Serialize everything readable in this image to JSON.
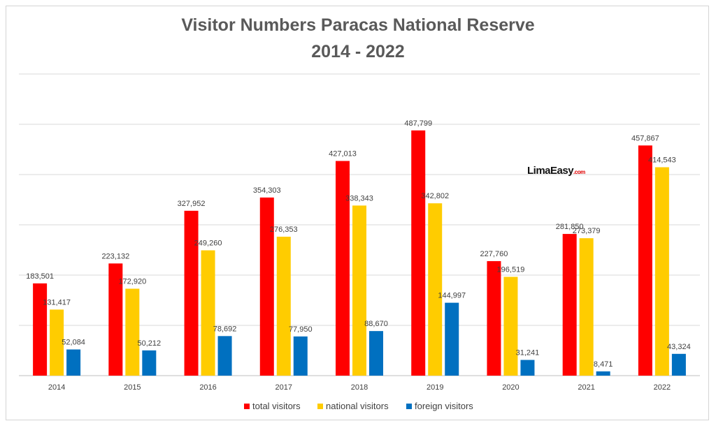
{
  "chart_data": {
    "type": "bar",
    "title": "Visitor Numbers Paracas National Reserve",
    "subtitle": "2014 - 2022",
    "categories": [
      "2014",
      "2015",
      "2016",
      "2017",
      "2018",
      "2019",
      "2020",
      "2021",
      "2022"
    ],
    "series": [
      {
        "name": "total visitors",
        "color": "#ff0000",
        "values": [
          183501,
          223132,
          327952,
          354303,
          427013,
          487799,
          227760,
          281850,
          457867
        ],
        "labels": [
          "183,501",
          "223,132",
          "327,952",
          "354,303",
          "427,013",
          "487,799",
          "227,760",
          "281,850",
          "457,867"
        ]
      },
      {
        "name": "national visitors",
        "color": "#ffcc00",
        "values": [
          131417,
          172920,
          249260,
          276353,
          338343,
          342802,
          196519,
          273379,
          414543
        ],
        "labels": [
          "131,417",
          "172,920",
          "249,260",
          "276,353",
          "338,343",
          "342,802",
          "196,519",
          "273,379",
          "414,543"
        ]
      },
      {
        "name": "foreign visitors",
        "color": "#0070c0",
        "values": [
          52084,
          50212,
          78692,
          77950,
          88670,
          144997,
          31241,
          8471,
          43324
        ],
        "labels": [
          "52,084",
          "50,212",
          "78,692",
          "77,950",
          "88,670",
          "144,997",
          "31,241",
          "8,471",
          "43,324"
        ]
      }
    ],
    "ylim": [
      0,
      600000
    ],
    "y_gridlines": [
      100000,
      200000,
      300000,
      400000,
      500000,
      600000
    ],
    "y_tick_labels_shown": false,
    "grid": true,
    "legend_position": "bottom"
  },
  "watermark": {
    "main": "LimaEasy",
    "suffix": ".com"
  }
}
